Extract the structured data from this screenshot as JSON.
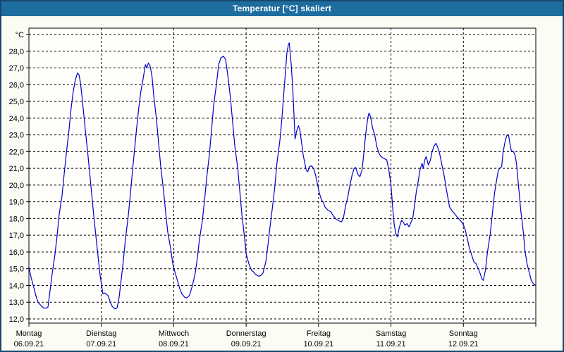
{
  "window": {
    "title": "Temperatur [°C] skaliert"
  },
  "colors": {
    "titlebar_bg": "#1d6d9f",
    "titlebar_text": "#ffffff",
    "frame_border": "#17486d",
    "canvas_bg": "#fbfdf5",
    "plot_bg": "#fefefb",
    "grid": "#000000",
    "curve": "#0000cc",
    "label_text": "#000000"
  },
  "chart_data": {
    "type": "line",
    "title": "Temperatur [°C] skaliert",
    "ylabel": "°C",
    "ylim": [
      12,
      29
    ],
    "grid": "dashed",
    "legend": "none",
    "x_range_hours": [
      0,
      168
    ],
    "y_ticks": [
      {
        "value": 29,
        "label": "°C"
      },
      {
        "value": 28,
        "label": "28,0"
      },
      {
        "value": 27,
        "label": "27,0"
      },
      {
        "value": 26,
        "label": "26,0"
      },
      {
        "value": 25,
        "label": "25,0"
      },
      {
        "value": 24,
        "label": "24,0"
      },
      {
        "value": 23,
        "label": "23,0"
      },
      {
        "value": 22,
        "label": "22,0"
      },
      {
        "value": 21,
        "label": "21,0"
      },
      {
        "value": 20,
        "label": "20,0"
      },
      {
        "value": 19,
        "label": "19,0"
      },
      {
        "value": 18,
        "label": "18,0"
      },
      {
        "value": 17,
        "label": "17,0"
      },
      {
        "value": 16,
        "label": "16,0"
      },
      {
        "value": 15,
        "label": "15,0"
      },
      {
        "value": 14,
        "label": "14,0"
      },
      {
        "value": 13,
        "label": "13,0"
      },
      {
        "value": 12,
        "label": "12,0"
      }
    ],
    "x_days": [
      {
        "name": "Montag",
        "date": "06.09.21",
        "start_hour": 0
      },
      {
        "name": "Dienstag",
        "date": "07.09.21",
        "start_hour": 24
      },
      {
        "name": "Mittwoch",
        "date": "08.09.21",
        "start_hour": 48
      },
      {
        "name": "Donnerstag",
        "date": "09.09.21",
        "start_hour": 72
      },
      {
        "name": "Freitag",
        "date": "10.09.21",
        "start_hour": 96
      },
      {
        "name": "Samstag",
        "date": "11.09.21",
        "start_hour": 120
      },
      {
        "name": "Sonntag",
        "date": "12.09.21",
        "start_hour": 144
      }
    ],
    "series": [
      {
        "name": "Temperatur",
        "color": "#0000cc",
        "points": [
          [
            0,
            15.1
          ],
          [
            0.7,
            14.5
          ],
          [
            1.6,
            13.9
          ],
          [
            2.3,
            13.4
          ],
          [
            3,
            13.0
          ],
          [
            4,
            12.8
          ],
          [
            4.9,
            12.65
          ],
          [
            5.8,
            12.65
          ],
          [
            6.3,
            12.7
          ],
          [
            7,
            13.7
          ],
          [
            7.7,
            14.7
          ],
          [
            8.6,
            15.8
          ],
          [
            9.3,
            16.9
          ],
          [
            10,
            18.2
          ],
          [
            11,
            19.4
          ],
          [
            11.7,
            20.7
          ],
          [
            12.4,
            21.9
          ],
          [
            13.3,
            23.3
          ],
          [
            14,
            24.6
          ],
          [
            14.7,
            25.6
          ],
          [
            15.4,
            26.3
          ],
          [
            16.1,
            26.7
          ],
          [
            16.6,
            26.6
          ],
          [
            17,
            26.2
          ],
          [
            17.6,
            25.3
          ],
          [
            18.2,
            24.2
          ],
          [
            18.8,
            23.1
          ],
          [
            19.5,
            21.9
          ],
          [
            20.2,
            20.6
          ],
          [
            20.9,
            19.3
          ],
          [
            21.6,
            18.0
          ],
          [
            22.3,
            16.8
          ],
          [
            23,
            15.6
          ],
          [
            23.6,
            14.6
          ],
          [
            24.5,
            13.5
          ],
          [
            25.2,
            13.55
          ],
          [
            26.2,
            13.4
          ],
          [
            26.9,
            13.05
          ],
          [
            27.6,
            12.75
          ],
          [
            28.5,
            12.6
          ],
          [
            29.2,
            12.65
          ],
          [
            29.9,
            13.3
          ],
          [
            30.6,
            14.4
          ],
          [
            31.3,
            15.5
          ],
          [
            32,
            16.8
          ],
          [
            32.9,
            18.1
          ],
          [
            33.6,
            19.4
          ],
          [
            34.3,
            20.8
          ],
          [
            35,
            22.1
          ],
          [
            35.7,
            23.4
          ],
          [
            36.4,
            24.6
          ],
          [
            37.1,
            25.6
          ],
          [
            37.9,
            26.4
          ],
          [
            38.6,
            27.2
          ],
          [
            39,
            27.0
          ],
          [
            39.6,
            27.3
          ],
          [
            40.2,
            27.1
          ],
          [
            40.8,
            26.5
          ],
          [
            41.4,
            25.3
          ],
          [
            42.3,
            23.9
          ],
          [
            43,
            22.5
          ],
          [
            43.7,
            21.1
          ],
          [
            44.6,
            19.7
          ],
          [
            45.3,
            18.4
          ],
          [
            46,
            17.2
          ],
          [
            47,
            16.2
          ],
          [
            47.7,
            15.3
          ],
          [
            48.4,
            14.8
          ],
          [
            49.3,
            14.25
          ],
          [
            50,
            13.8
          ],
          [
            50.7,
            13.5
          ],
          [
            51.6,
            13.3
          ],
          [
            52.3,
            13.25
          ],
          [
            53.2,
            13.4
          ],
          [
            54.2,
            14.0
          ],
          [
            55.1,
            14.7
          ],
          [
            55.8,
            15.6
          ],
          [
            56.5,
            16.7
          ],
          [
            57.5,
            17.9
          ],
          [
            58.2,
            19.1
          ],
          [
            58.9,
            20.4
          ],
          [
            59.8,
            21.8
          ],
          [
            60.5,
            23.2
          ],
          [
            61.2,
            24.7
          ],
          [
            62.2,
            26.1
          ],
          [
            62.9,
            27.2
          ],
          [
            63.6,
            27.6
          ],
          [
            64.5,
            27.7
          ],
          [
            65.2,
            27.5
          ],
          [
            65.9,
            26.6
          ],
          [
            66.8,
            25.2
          ],
          [
            67.5,
            23.8
          ],
          [
            68.2,
            22.4
          ],
          [
            69.2,
            21.0
          ],
          [
            69.9,
            19.6
          ],
          [
            70.6,
            18.2
          ],
          [
            71.5,
            16.8
          ],
          [
            72,
            15.9
          ],
          [
            72.9,
            15.3
          ],
          [
            73.8,
            14.9
          ],
          [
            74.5,
            14.8
          ],
          [
            75.2,
            14.65
          ],
          [
            76.2,
            14.55
          ],
          [
            76.9,
            14.6
          ],
          [
            77.6,
            14.75
          ],
          [
            78.5,
            15.4
          ],
          [
            79.2,
            16.4
          ],
          [
            79.9,
            17.5
          ],
          [
            80.8,
            18.8
          ],
          [
            81.5,
            19.9
          ],
          [
            82.2,
            21.3
          ],
          [
            83.2,
            22.7
          ],
          [
            83.9,
            24.1
          ],
          [
            84.6,
            25.8
          ],
          [
            85.1,
            26.9
          ],
          [
            85.5,
            27.9
          ],
          [
            86,
            28.4
          ],
          [
            86.3,
            28.5
          ],
          [
            86.9,
            27.3
          ],
          [
            87.4,
            25.9
          ],
          [
            87.9,
            24.0
          ],
          [
            88.2,
            22.75
          ],
          [
            88.7,
            23.2
          ],
          [
            89.3,
            23.55
          ],
          [
            89.8,
            23.3
          ],
          [
            90.4,
            22.5
          ],
          [
            90.9,
            21.8
          ],
          [
            91.4,
            21.35
          ],
          [
            91.9,
            20.9
          ],
          [
            92.4,
            20.8
          ],
          [
            93,
            21.1
          ],
          [
            93.7,
            21.15
          ],
          [
            94.3,
            21.0
          ],
          [
            95,
            20.6
          ],
          [
            95.6,
            20.1
          ],
          [
            96.3,
            19.5
          ],
          [
            97,
            19.1
          ],
          [
            97.5,
            19.0
          ],
          [
            98.1,
            18.7
          ],
          [
            99.1,
            18.5
          ],
          [
            100.1,
            18.4
          ],
          [
            100.9,
            18.15
          ],
          [
            101.9,
            17.95
          ],
          [
            102.9,
            17.85
          ],
          [
            103.6,
            17.8
          ],
          [
            104.3,
            18.1
          ],
          [
            105,
            18.8
          ],
          [
            105.7,
            19.3
          ],
          [
            106.4,
            20.0
          ],
          [
            107.1,
            20.6
          ],
          [
            107.8,
            21.0
          ],
          [
            108.3,
            21.05
          ],
          [
            109,
            20.65
          ],
          [
            109.7,
            20.5
          ],
          [
            110.4,
            20.9
          ],
          [
            110.9,
            21.7
          ],
          [
            111.6,
            23.0
          ],
          [
            112.3,
            24.0
          ],
          [
            112.7,
            24.3
          ],
          [
            113.2,
            24.1
          ],
          [
            113.9,
            23.4
          ],
          [
            114.6,
            23.0
          ],
          [
            115.3,
            22.3
          ],
          [
            116,
            21.9
          ],
          [
            116.7,
            21.7
          ],
          [
            117.6,
            21.6
          ],
          [
            118.6,
            21.5
          ],
          [
            119.3,
            20.9
          ],
          [
            120,
            20.0
          ],
          [
            120.6,
            18.6
          ],
          [
            121.1,
            17.6
          ],
          [
            121.6,
            17.1
          ],
          [
            122.1,
            16.9
          ],
          [
            122.8,
            17.5
          ],
          [
            123.5,
            17.9
          ],
          [
            124.2,
            17.75
          ],
          [
            124.6,
            17.6
          ],
          [
            125.3,
            17.7
          ],
          [
            126,
            17.5
          ],
          [
            126.7,
            17.8
          ],
          [
            127.2,
            18.0
          ],
          [
            127.9,
            18.9
          ],
          [
            128.4,
            19.6
          ],
          [
            128.9,
            20.1
          ],
          [
            129.6,
            20.9
          ],
          [
            130.3,
            21.3
          ],
          [
            130.7,
            21.0
          ],
          [
            131.2,
            21.5
          ],
          [
            131.7,
            21.7
          ],
          [
            132.4,
            21.2
          ],
          [
            133.1,
            21.5
          ],
          [
            133.5,
            21.9
          ],
          [
            134.2,
            22.3
          ],
          [
            134.9,
            22.5
          ],
          [
            135.4,
            22.3
          ],
          [
            136.1,
            21.9
          ],
          [
            137,
            21.1
          ],
          [
            137.7,
            20.5
          ],
          [
            138.4,
            19.7
          ],
          [
            138.9,
            19.2
          ],
          [
            139.4,
            18.7
          ],
          [
            140.1,
            18.5
          ],
          [
            141,
            18.3
          ],
          [
            141.9,
            18.1
          ],
          [
            142.9,
            17.9
          ],
          [
            143.8,
            17.7
          ],
          [
            144.5,
            17.4
          ],
          [
            145.2,
            16.9
          ],
          [
            145.9,
            16.3
          ],
          [
            146.6,
            15.9
          ],
          [
            147.5,
            15.4
          ],
          [
            148.2,
            15.3
          ],
          [
            148.9,
            15.0
          ],
          [
            149.4,
            14.8
          ],
          [
            150.1,
            14.4
          ],
          [
            150.6,
            14.3
          ],
          [
            151.3,
            14.9
          ],
          [
            152,
            16.0
          ],
          [
            152.9,
            17.1
          ],
          [
            153.6,
            18.3
          ],
          [
            154.3,
            19.5
          ],
          [
            155,
            20.3
          ],
          [
            155.5,
            20.8
          ],
          [
            156,
            21.0
          ],
          [
            156.7,
            21.1
          ],
          [
            157.1,
            21.9
          ],
          [
            157.6,
            22.4
          ],
          [
            158.1,
            22.8
          ],
          [
            158.5,
            23.0
          ],
          [
            159,
            22.95
          ],
          [
            159.5,
            22.4
          ],
          [
            159.9,
            22.05
          ],
          [
            160.6,
            22.0
          ],
          [
            161.1,
            21.8
          ],
          [
            161.6,
            21.3
          ],
          [
            162.1,
            20.3
          ],
          [
            162.5,
            19.5
          ],
          [
            163,
            18.5
          ],
          [
            163.5,
            17.8
          ],
          [
            163.9,
            17.1
          ],
          [
            164.4,
            16.1
          ],
          [
            165.1,
            15.3
          ],
          [
            165.8,
            14.8
          ],
          [
            166.5,
            14.3
          ],
          [
            167.2,
            14.1
          ],
          [
            167.9,
            14.0
          ]
        ]
      }
    ]
  }
}
